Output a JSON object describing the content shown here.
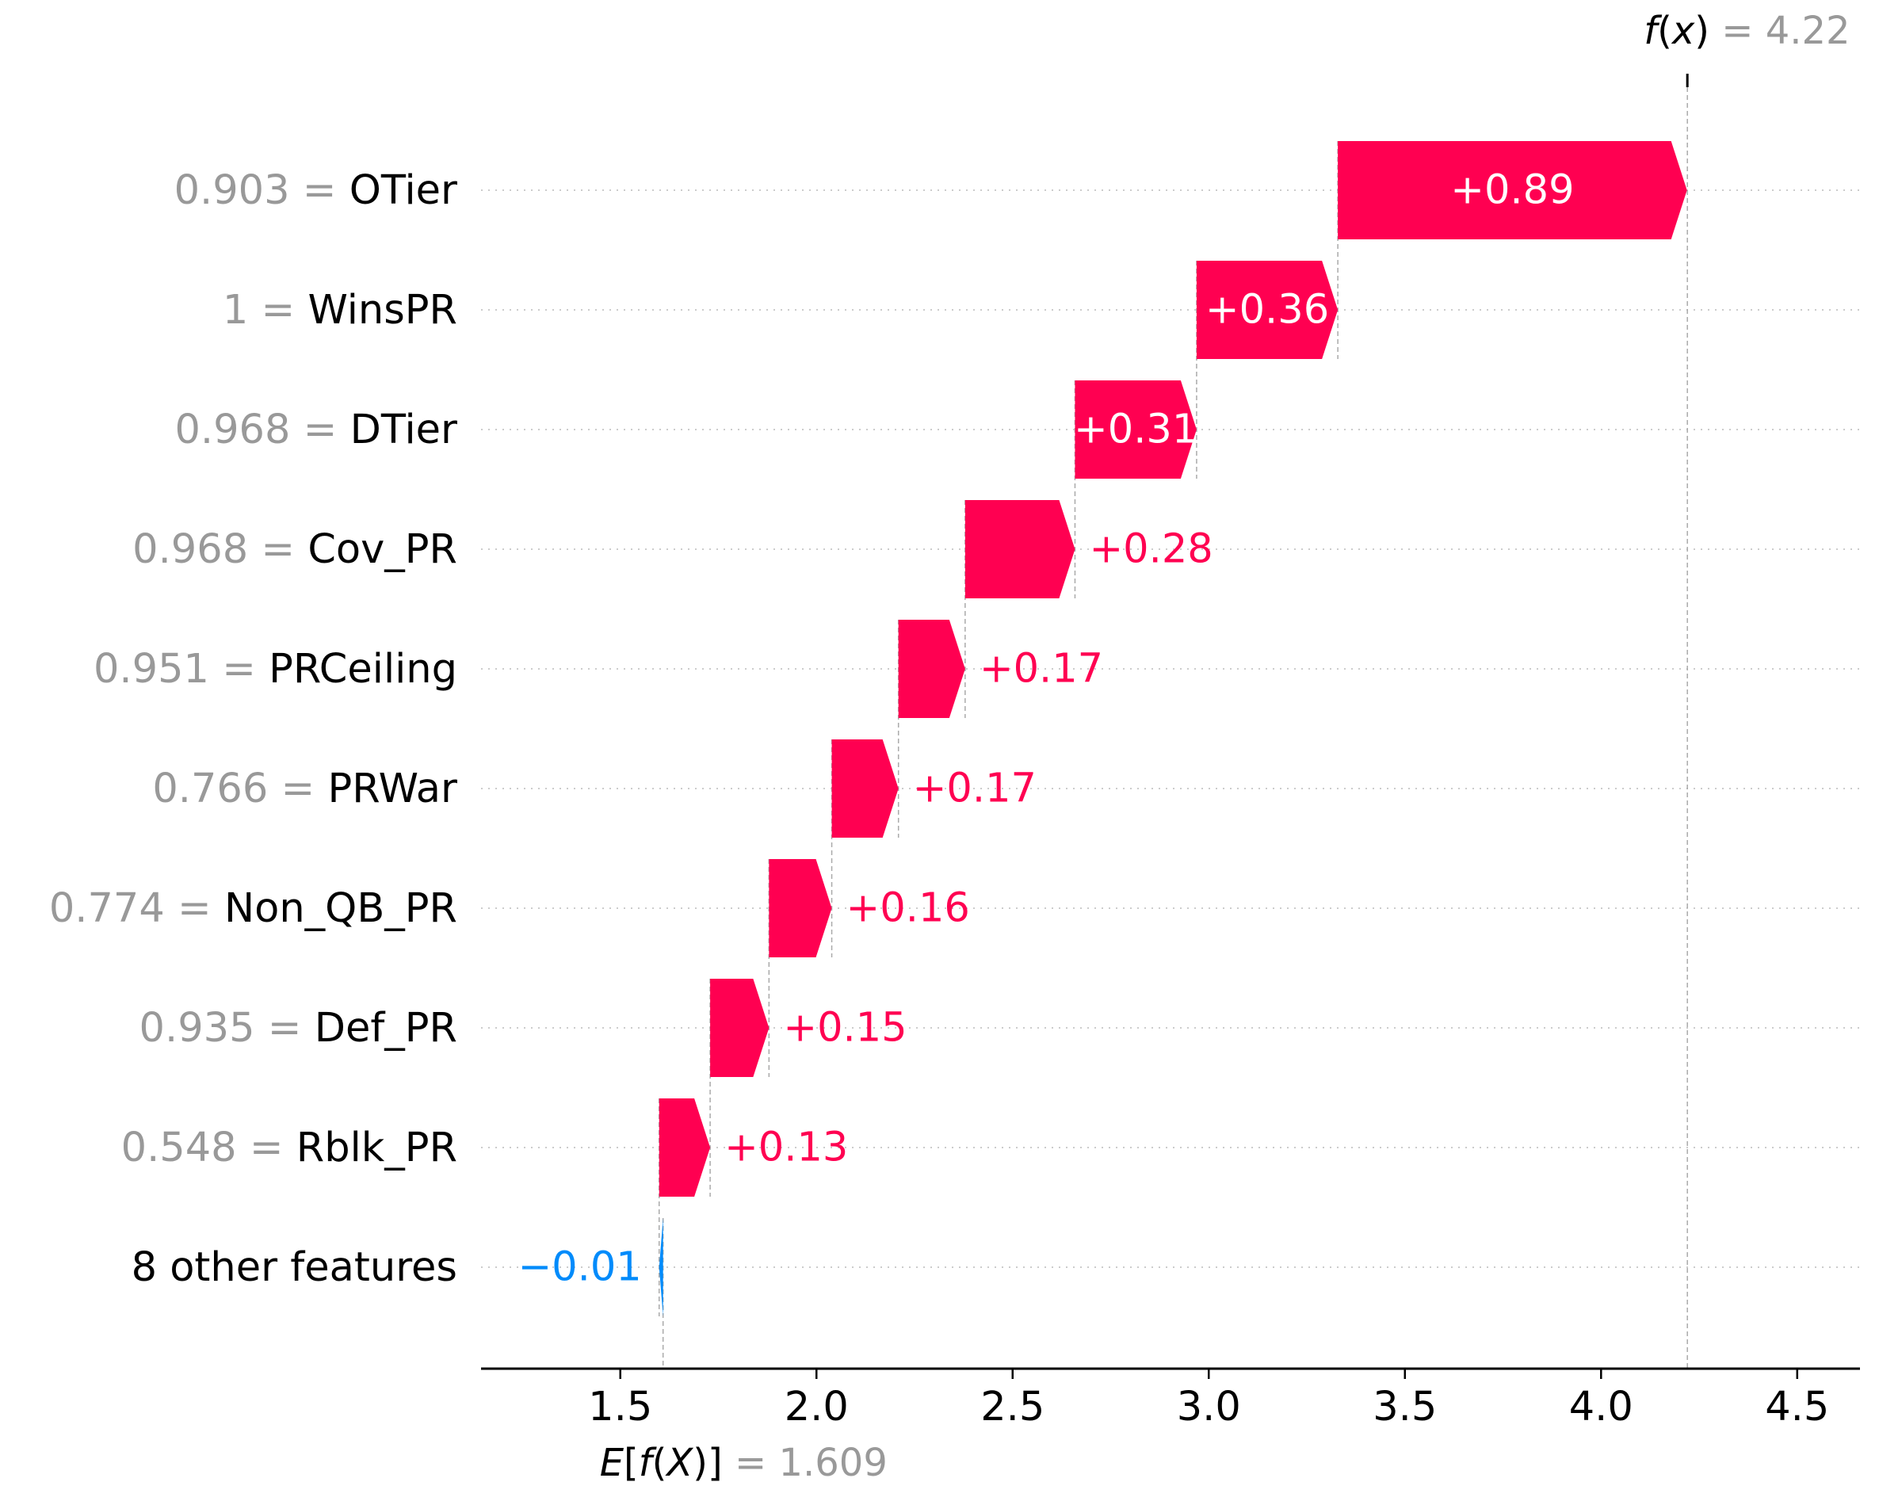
{
  "chart_data": {
    "type": "waterfall",
    "base_value": 1.609,
    "base_value_label": "1.609",
    "base_label_parts": [
      "E[",
      "f",
      "(",
      "X",
      ")]",
      " = "
    ],
    "fx_value": 4.22,
    "fx_value_label": "4.22",
    "fx_label_parts": [
      "f",
      "(",
      "x",
      ")",
      " = "
    ],
    "features": [
      {
        "value": "0.903",
        "name": "OTier",
        "contribution": 0.89,
        "label": "+0.89"
      },
      {
        "value": "1",
        "name": "WinsPR",
        "contribution": 0.36,
        "label": "+0.36"
      },
      {
        "value": "0.968",
        "name": "DTier",
        "contribution": 0.31,
        "label": "+0.31"
      },
      {
        "value": "0.968",
        "name": "Cov_PR",
        "contribution": 0.28,
        "label": "+0.28"
      },
      {
        "value": "0.951",
        "name": "PRCeiling",
        "contribution": 0.17,
        "label": "+0.17"
      },
      {
        "value": "0.766",
        "name": "PRWar",
        "contribution": 0.17,
        "label": "+0.17"
      },
      {
        "value": "0.774",
        "name": "Non_QB_PR",
        "contribution": 0.16,
        "label": "+0.16"
      },
      {
        "value": "0.935",
        "name": "Def_PR",
        "contribution": 0.15,
        "label": "+0.15"
      },
      {
        "value": "0.548",
        "name": "Rblk_PR",
        "contribution": 0.13,
        "label": "+0.13"
      },
      {
        "value": "",
        "name": "8 other features",
        "contribution": -0.01,
        "label": "−0.01"
      }
    ],
    "x_ticks": [
      {
        "value": 1.5,
        "label": "1.5"
      },
      {
        "value": 2.0,
        "label": "2.0"
      },
      {
        "value": 2.5,
        "label": "2.5"
      },
      {
        "value": 3.0,
        "label": "3.0"
      },
      {
        "value": 3.5,
        "label": "3.5"
      },
      {
        "value": 4.0,
        "label": "4.0"
      },
      {
        "value": 4.5,
        "label": "4.5"
      }
    ],
    "xlim": [
      1.145,
      4.66
    ],
    "colors": {
      "positive": "#ff0051",
      "negative": "#008bfb",
      "feature_value": "#999999",
      "gridline": "#cccccc",
      "axis": "#000000"
    }
  }
}
